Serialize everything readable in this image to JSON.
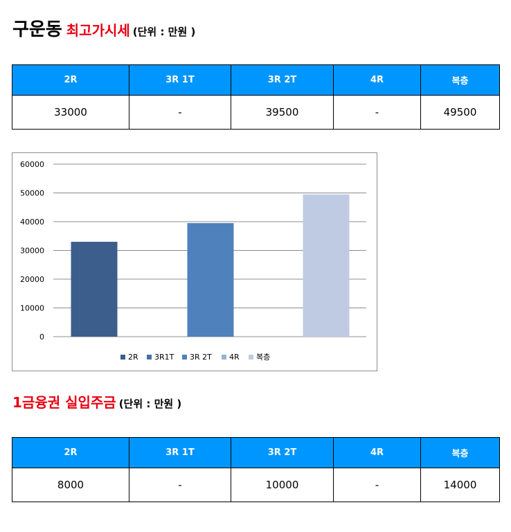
{
  "section1": {
    "place": "구운동",
    "heading": "최고가시세",
    "unit": "(단위 : 만원 )"
  },
  "table1": {
    "headers": [
      "2R",
      "3R 1T",
      "3R 2T",
      "4R",
      "복층"
    ],
    "values": [
      "33000",
      "-",
      "39500",
      "-",
      "49500"
    ]
  },
  "chart_data": {
    "type": "bar",
    "categories": [
      "2R",
      "3R1T",
      "3R 2T",
      "4R",
      "복층"
    ],
    "values": [
      33000,
      0,
      39500,
      0,
      49500
    ],
    "ylim": [
      0,
      60000
    ],
    "yticks": [
      0,
      10000,
      20000,
      30000,
      40000,
      50000,
      60000
    ],
    "ytick_labels": [
      "0",
      "10000",
      "20000",
      "30000",
      "40000",
      "50000",
      "60000"
    ],
    "grid": true,
    "legend_position": "bottom",
    "colors": [
      "#3b5e8c",
      "#4a6fa5",
      "#4f81bd",
      "#95b3d7",
      "#bfcbe2"
    ]
  },
  "section2": {
    "heading": "1금융권 실입주금",
    "unit": "(단위 : 만원 )"
  },
  "table2": {
    "headers": [
      "2R",
      "3R 1T",
      "3R 2T",
      "4R",
      "복층"
    ],
    "values": [
      "8000",
      "-",
      "10000",
      "-",
      "14000"
    ]
  }
}
